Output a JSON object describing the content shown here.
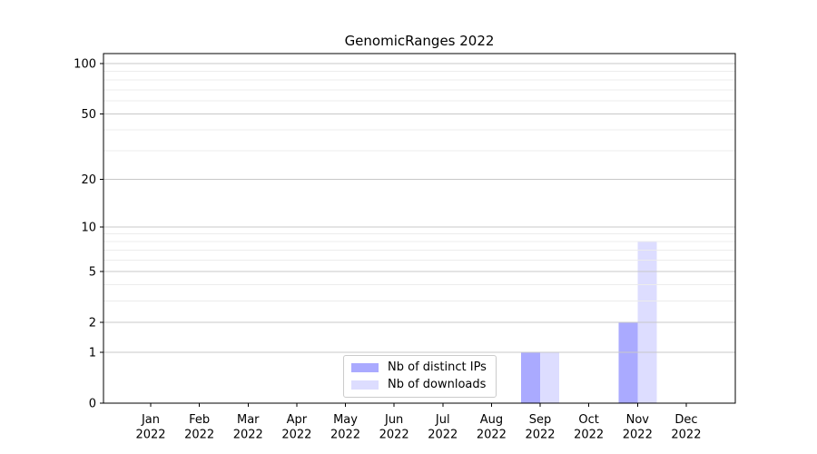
{
  "chart_data": {
    "type": "bar",
    "title": "GenomicRanges 2022",
    "categories": [
      "Jan",
      "Feb",
      "Mar",
      "Apr",
      "May",
      "Jun",
      "Jul",
      "Aug",
      "Sep",
      "Oct",
      "Nov",
      "Dec"
    ],
    "category_year": "2022",
    "series": [
      {
        "name": "Nb of distinct IPs",
        "color": "#aaaaff",
        "values": [
          0,
          0,
          0,
          0,
          0,
          0,
          0,
          0,
          1,
          0,
          2,
          0
        ]
      },
      {
        "name": "Nb of downloads",
        "color": "#ddddff",
        "values": [
          0,
          0,
          0,
          0,
          0,
          0,
          0,
          0,
          1,
          0,
          8,
          0
        ]
      }
    ],
    "yscale": "log1p",
    "ylim": [
      0,
      115
    ],
    "y_major_ticks": [
      0,
      1,
      2,
      5,
      10,
      20,
      50,
      100
    ],
    "y_minor_gridlines": [
      3,
      4,
      6,
      7,
      8,
      9,
      30,
      40,
      60,
      70,
      80,
      90
    ],
    "grid": "on",
    "grid_above_bars": true,
    "legend_position": "lower center",
    "colors": {
      "major_grid": "#c8c8c8",
      "minor_grid": "#ececec",
      "axis": "#000000",
      "text": "#000000",
      "background": "#ffffff"
    }
  }
}
